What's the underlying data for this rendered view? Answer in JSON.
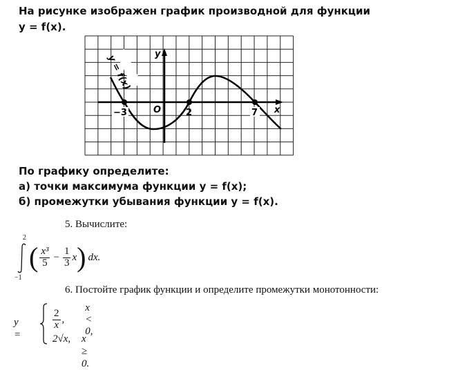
{
  "task4": {
    "line1": "На рисунке изображен график производной для функции",
    "line2": "y = f(x).",
    "graph": {
      "y_label": "y",
      "x_label": "x",
      "origin_label": "O",
      "curve_label": "y = f(x)",
      "marked_points": [
        "−3",
        "2",
        "7"
      ]
    },
    "prompt": "По графику определите:",
    "item_a": "а) точки максимума функции y = f(x);",
    "item_b": "б) промежутки убывания функции y = f(x)."
  },
  "task5": {
    "heading": "5.   Вычислите:",
    "upper": "2",
    "lower": "−1",
    "num1": "x³",
    "den1": "5",
    "minus": "−",
    "num2": "1",
    "den2": "3",
    "var": "x",
    "dx": "dx."
  },
  "task6": {
    "heading": "6.   Постойте график функции и определите промежутки монотонности:",
    "lhs": "y =",
    "case1_num": "2",
    "case1_den": "x",
    "case1_comma": ",",
    "case1_cond": "x < 0,",
    "case2_expr": "2√x,",
    "case2_cond": "x ≥ 0."
  }
}
